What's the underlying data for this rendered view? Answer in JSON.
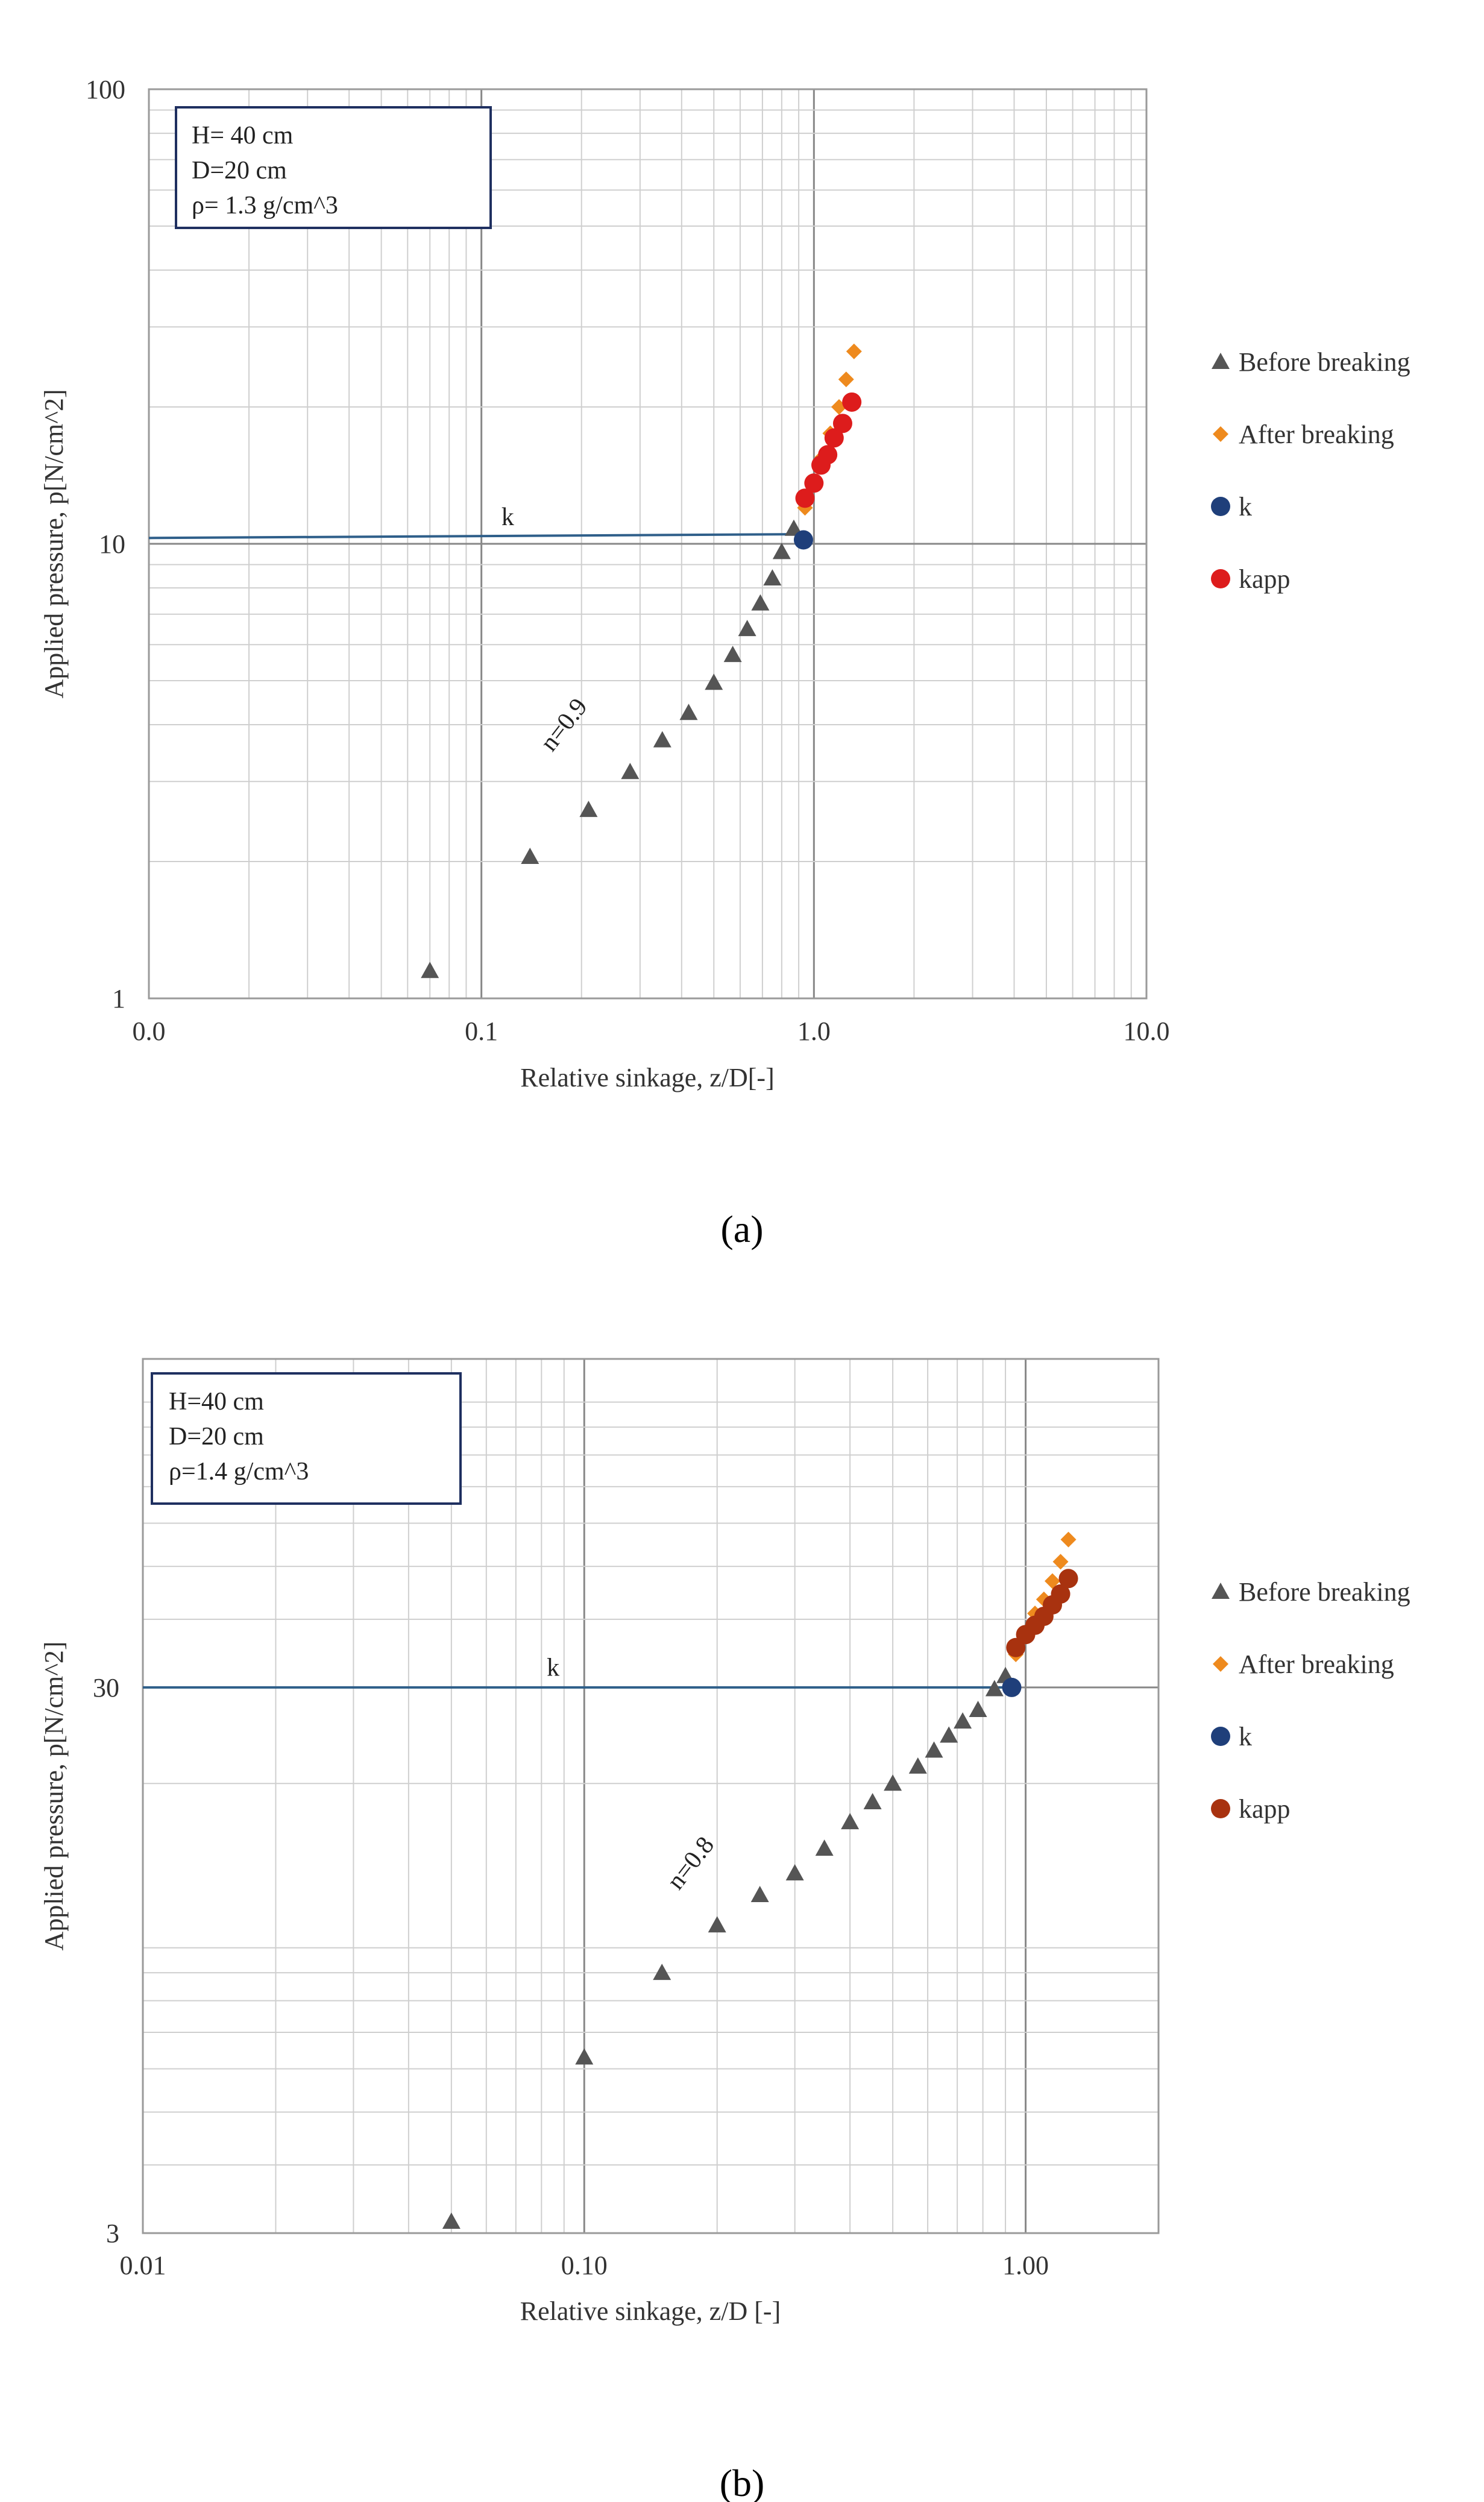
{
  "chart_data": [
    {
      "type": "scatter",
      "panel_label": "(a)",
      "xscale": "log",
      "yscale": "log",
      "xlim": [
        0.01,
        10.0
      ],
      "ylim": [
        1,
        100
      ],
      "xlabel": "Relative sinkage, z/D[-]",
      "ylabel": "Applied pressure, p[N/cm^2]",
      "x_ticks": [
        {
          "v": 0.01,
          "label": "0.0"
        },
        {
          "v": 0.1,
          "label": "0.1"
        },
        {
          "v": 1,
          "label": "1.0"
        },
        {
          "v": 10,
          "label": "10.0"
        }
      ],
      "y_ticks": [
        {
          "v": 1,
          "label": "1"
        },
        {
          "v": 10,
          "label": "10"
        },
        {
          "v": 100,
          "label": "100"
        }
      ],
      "info_box": [
        "H= 40 cm",
        "D=20 cm",
        "ρ= 1.3 g/cm^3"
      ],
      "annotations": {
        "k_label": "k",
        "n_label": "n=0.9"
      },
      "k_line": {
        "x_start": 0.01,
        "x_end": 0.95,
        "y_start": 10.3,
        "y_end": 10.5
      },
      "n_label_pos": {
        "x": 0.185,
        "y": 3.9
      },
      "k_label_pos": {
        "x": 0.12,
        "y": 11.0
      },
      "legend": [
        {
          "name": "Before breaking",
          "marker": "triangle",
          "color": "#555555"
        },
        {
          "name": "After breaking",
          "marker": "diamond",
          "color": "#ee8a1e"
        },
        {
          "name": "k",
          "marker": "circle",
          "color": "#1f3f7a"
        },
        {
          "name": "kapp",
          "marker": "circle",
          "color": "#dd1c1c"
        }
      ],
      "series": [
        {
          "name": "Before breaking",
          "points": [
            [
              0.07,
              1.15
            ],
            [
              0.14,
              2.05
            ],
            [
              0.21,
              2.6
            ],
            [
              0.28,
              3.15
            ],
            [
              0.35,
              3.7
            ],
            [
              0.42,
              4.25
            ],
            [
              0.5,
              4.95
            ],
            [
              0.57,
              5.7
            ],
            [
              0.63,
              6.5
            ],
            [
              0.69,
              7.4
            ],
            [
              0.75,
              8.4
            ],
            [
              0.8,
              9.6
            ],
            [
              0.87,
              10.8
            ]
          ]
        },
        {
          "name": "After breaking",
          "points": [
            [
              0.94,
              12.0
            ],
            [
              1.0,
              13.5
            ],
            [
              1.06,
              15.5
            ],
            [
              1.12,
              17.5
            ],
            [
              1.19,
              20.0
            ],
            [
              1.25,
              23.0
            ],
            [
              1.32,
              26.5
            ]
          ]
        },
        {
          "name": "k",
          "points": [
            [
              0.93,
              10.2
            ]
          ]
        },
        {
          "name": "kapp",
          "points": [
            [
              0.94,
              12.6
            ],
            [
              1.0,
              13.6
            ],
            [
              1.05,
              14.9
            ],
            [
              1.1,
              15.7
            ],
            [
              1.15,
              17.1
            ],
            [
              1.22,
              18.4
            ],
            [
              1.3,
              20.5
            ]
          ]
        }
      ]
    },
    {
      "type": "scatter",
      "panel_label": "(b)",
      "xscale": "log",
      "yscale": "log",
      "xlim": [
        0.01,
        2.0
      ],
      "ylim": [
        3,
        120
      ],
      "xlabel": "Relative sinkage, z/D [-]",
      "ylabel": "Applied pressure, p[N/cm^2]",
      "x_ticks": [
        {
          "v": 0.01,
          "label": "0.01"
        },
        {
          "v": 0.1,
          "label": "0.10"
        },
        {
          "v": 1,
          "label": "1.00"
        }
      ],
      "y_ticks": [
        {
          "v": 3,
          "label": "3"
        },
        {
          "v": 30,
          "label": "30"
        }
      ],
      "info_box": [
        "H=40 cm",
        "D=20 cm",
        " ρ=1.4  g/cm^3"
      ],
      "annotations": {
        "k_label": "k",
        "n_label": "n=0.8"
      },
      "k_line": {
        "x_start": 0.01,
        "x_end": 0.95,
        "y_start": 30,
        "y_end": 30
      },
      "n_label_pos": {
        "x": 0.18,
        "y": 14.0
      },
      "k_label_pos": {
        "x": 0.085,
        "y": 31.5
      },
      "legend": [
        {
          "name": "Before breaking",
          "marker": "triangle",
          "color": "#555555"
        },
        {
          "name": "After breaking",
          "marker": "diamond",
          "color": "#ee8a1e"
        },
        {
          "name": "k",
          "marker": "circle",
          "color": "#1f3f7a"
        },
        {
          "name": "kapp",
          "marker": "circle",
          "color": "#a8320f"
        }
      ],
      "series": [
        {
          "name": "Before breaking",
          "points": [
            [
              0.05,
              3.15
            ],
            [
              0.1,
              6.3
            ],
            [
              0.15,
              9.0
            ],
            [
              0.2,
              11.0
            ],
            [
              0.25,
              12.5
            ],
            [
              0.3,
              13.7
            ],
            [
              0.35,
              15.2
            ],
            [
              0.4,
              17.0
            ],
            [
              0.45,
              18.5
            ],
            [
              0.5,
              20.0
            ],
            [
              0.57,
              21.5
            ],
            [
              0.62,
              23.0
            ],
            [
              0.67,
              24.5
            ],
            [
              0.72,
              26.0
            ],
            [
              0.78,
              27.3
            ],
            [
              0.85,
              29.8
            ],
            [
              0.9,
              31.5
            ]
          ]
        },
        {
          "name": "After breaking",
          "points": [
            [
              0.95,
              34.5
            ],
            [
              1.0,
              37.5
            ],
            [
              1.05,
              41.0
            ],
            [
              1.1,
              43.5
            ],
            [
              1.15,
              47.0
            ],
            [
              1.2,
              51.0
            ],
            [
              1.25,
              56.0
            ]
          ]
        },
        {
          "name": "k",
          "points": [
            [
              0.93,
              30.0
            ]
          ]
        },
        {
          "name": "kapp",
          "points": [
            [
              0.95,
              35.5
            ],
            [
              1.0,
              37.5
            ],
            [
              1.05,
              39.0
            ],
            [
              1.1,
              40.5
            ],
            [
              1.15,
              42.5
            ],
            [
              1.2,
              44.5
            ],
            [
              1.25,
              47.5
            ]
          ]
        }
      ]
    }
  ]
}
